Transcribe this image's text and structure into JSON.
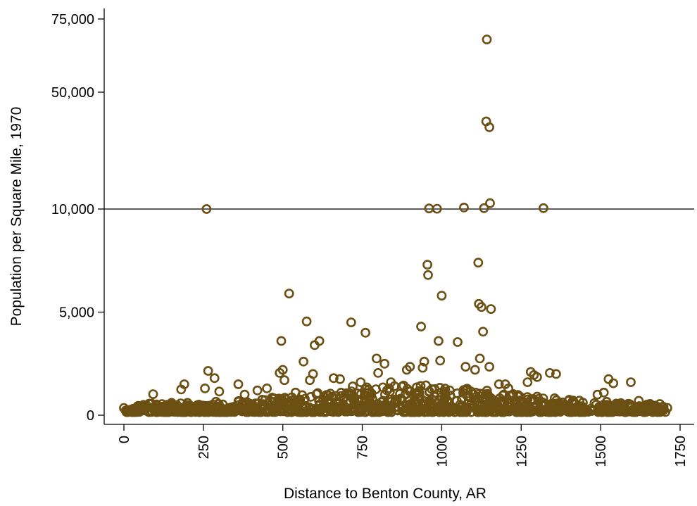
{
  "chart_data": {
    "type": "scatter",
    "title": "",
    "xlabel": "Distance to Benton County, AR",
    "ylabel": "Population per Square Mile, 1970",
    "xlim": [
      0,
      1750
    ],
    "y_scale": "piecewise (compressed above 10,000)",
    "x_ticks": [
      0,
      250,
      500,
      750,
      1000,
      1250,
      1500,
      1750
    ],
    "x_tick_labels": [
      "0",
      "250",
      "500",
      "750",
      "1000",
      "1250",
      "1500",
      "1750"
    ],
    "y_ticks": [
      0,
      5000,
      10000,
      50000,
      75000
    ],
    "y_tick_labels": [
      "0",
      "5,000",
      "10,000",
      "50,000",
      "75,000"
    ],
    "reference_line_y": 10000,
    "marker_color": "#6b4f13",
    "marker": "hollow circle",
    "points": [
      [
        0,
        350
      ],
      [
        30,
        320
      ],
      [
        60,
        300
      ],
      [
        92,
        1020
      ],
      [
        150,
        600
      ],
      [
        180,
        1250
      ],
      [
        190,
        1500
      ],
      [
        200,
        600
      ],
      [
        255,
        1300
      ],
      [
        260,
        10000
      ],
      [
        265,
        2150
      ],
      [
        285,
        1800
      ],
      [
        300,
        1150
      ],
      [
        360,
        1500
      ],
      [
        380,
        1000
      ],
      [
        420,
        1200
      ],
      [
        450,
        1300
      ],
      [
        490,
        2050
      ],
      [
        495,
        3600
      ],
      [
        500,
        2200
      ],
      [
        505,
        1700
      ],
      [
        520,
        5900
      ],
      [
        540,
        1100
      ],
      [
        565,
        2600
      ],
      [
        575,
        4550
      ],
      [
        585,
        1700
      ],
      [
        595,
        2000
      ],
      [
        600,
        3400
      ],
      [
        615,
        3600
      ],
      [
        660,
        1800
      ],
      [
        680,
        1750
      ],
      [
        715,
        4500
      ],
      [
        720,
        1400
      ],
      [
        745,
        1600
      ],
      [
        760,
        4000
      ],
      [
        795,
        2750
      ],
      [
        800,
        2050
      ],
      [
        815,
        1350
      ],
      [
        820,
        2500
      ],
      [
        840,
        1600
      ],
      [
        890,
        2200
      ],
      [
        900,
        2350
      ],
      [
        935,
        4300
      ],
      [
        940,
        2300
      ],
      [
        945,
        2600
      ],
      [
        950,
        1450
      ],
      [
        955,
        7300
      ],
      [
        957,
        6800
      ],
      [
        960,
        10200
      ],
      [
        985,
        10100
      ],
      [
        990,
        3600
      ],
      [
        995,
        2650
      ],
      [
        1000,
        5800
      ],
      [
        1050,
        3550
      ],
      [
        1070,
        10500
      ],
      [
        1075,
        2350
      ],
      [
        1105,
        2200
      ],
      [
        1115,
        7400
      ],
      [
        1117,
        5400
      ],
      [
        1120,
        2750
      ],
      [
        1125,
        5250
      ],
      [
        1130,
        4050
      ],
      [
        1133,
        10300
      ],
      [
        1140,
        40000
      ],
      [
        1142,
        68000
      ],
      [
        1150,
        38000
      ],
      [
        1152,
        12000
      ],
      [
        1155,
        5150
      ],
      [
        1150,
        2350
      ],
      [
        1180,
        1500
      ],
      [
        1200,
        1500
      ],
      [
        1210,
        1300
      ],
      [
        1270,
        1600
      ],
      [
        1280,
        2100
      ],
      [
        1290,
        1950
      ],
      [
        1300,
        1850
      ],
      [
        1320,
        10300
      ],
      [
        1340,
        2050
      ],
      [
        1360,
        2000
      ],
      [
        1490,
        1000
      ],
      [
        1510,
        1100
      ],
      [
        1525,
        1750
      ],
      [
        1540,
        1550
      ],
      [
        1595,
        1600
      ],
      [
        1620,
        700
      ],
      [
        1680,
        400
      ],
      [
        1710,
        350
      ]
    ]
  }
}
